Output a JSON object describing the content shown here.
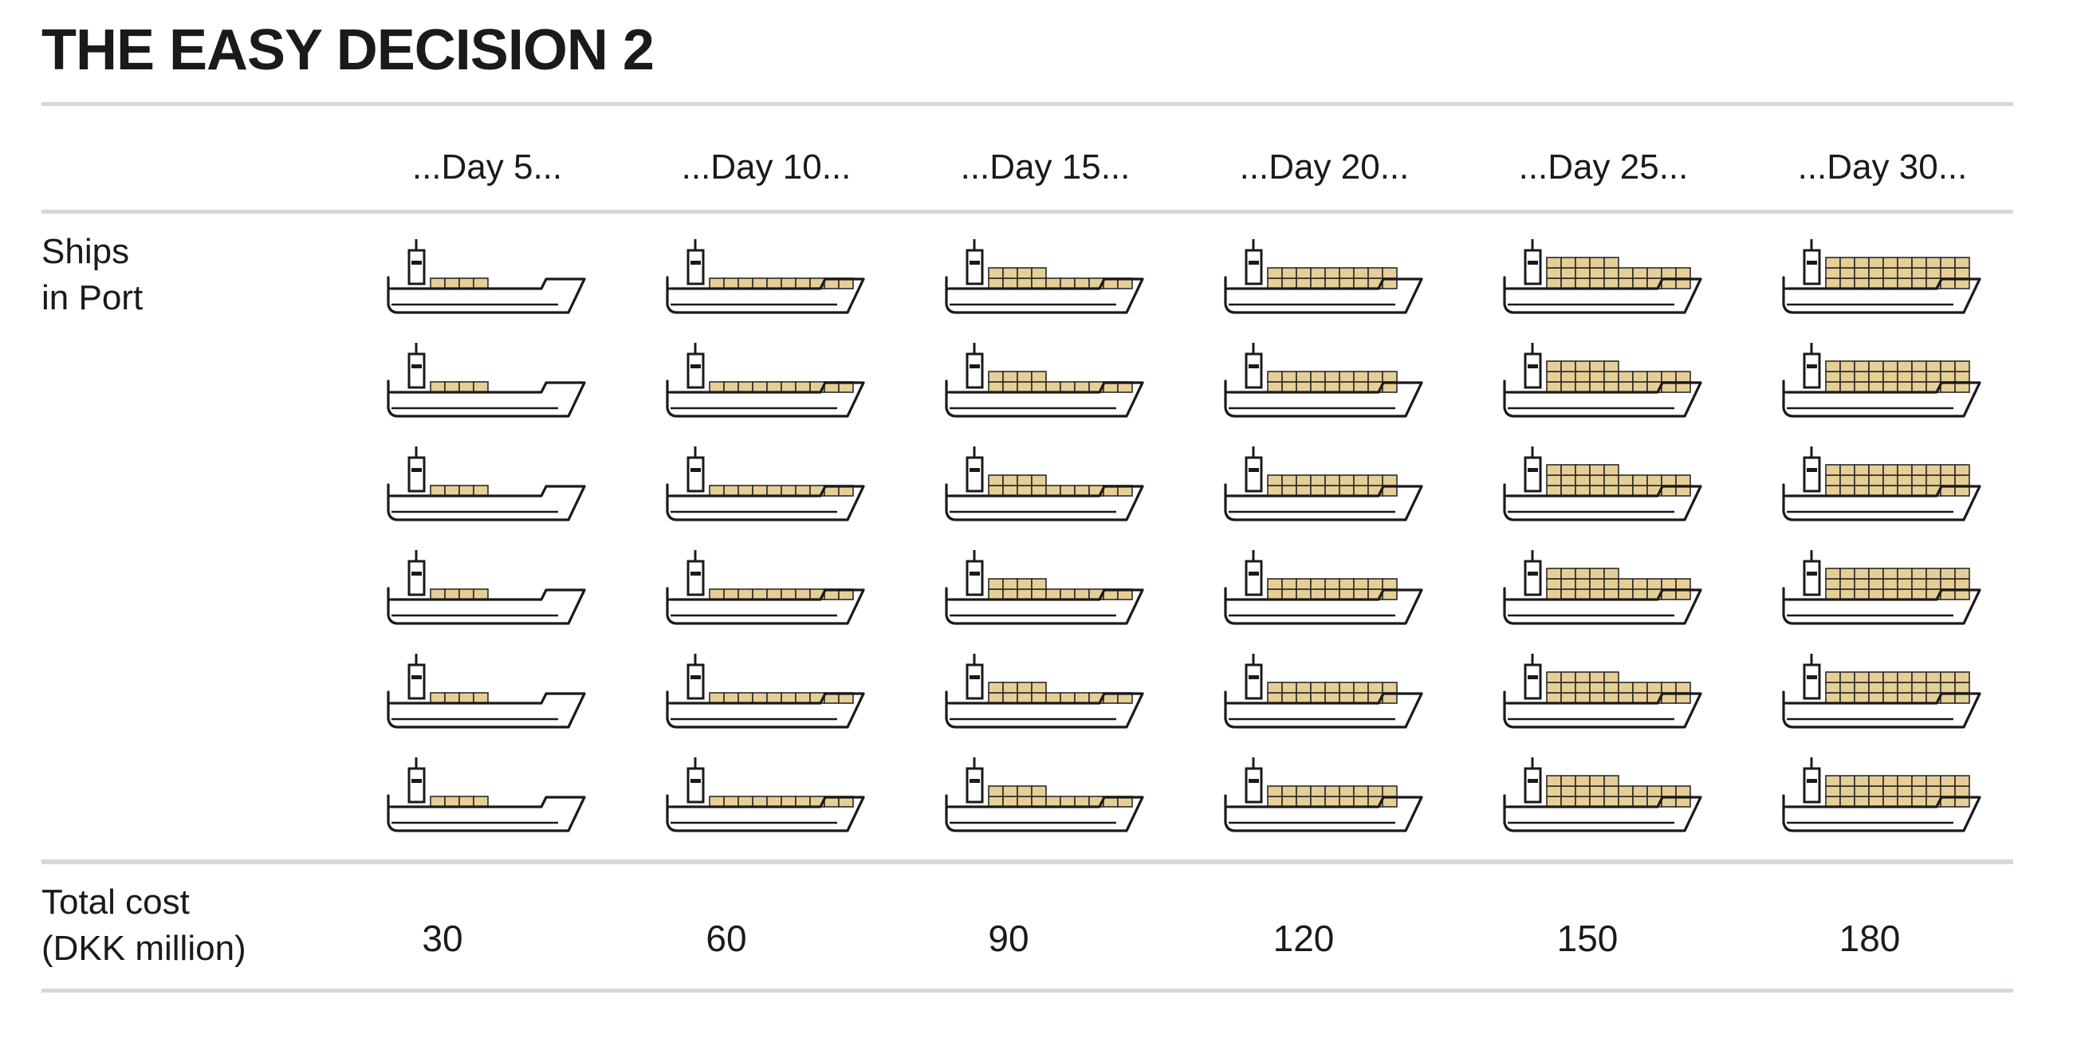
{
  "title": "THE EASY DECISION 2",
  "columns": [
    "...Day 5...",
    "...Day 10...",
    "...Day 15...",
    "...Day 20...",
    "...Day 25...",
    "...Day 30..."
  ],
  "rows": {
    "ships_label_line1": "Ships",
    "ships_label_line2": "in Port",
    "cost_label_line1": "Total cost",
    "cost_label_line2": "(DKK million)"
  },
  "costs": [
    "30",
    "60",
    "90",
    "120",
    "150",
    "180"
  ],
  "ships_per_column": 6,
  "container_levels": [
    1,
    2,
    3,
    4,
    5,
    6
  ],
  "colors": {
    "container_fill": "#e6cf96",
    "container_stroke": "#2a2a2a",
    "hull_stroke": "#1a1a1a",
    "rule": "#d8d8d3"
  }
}
